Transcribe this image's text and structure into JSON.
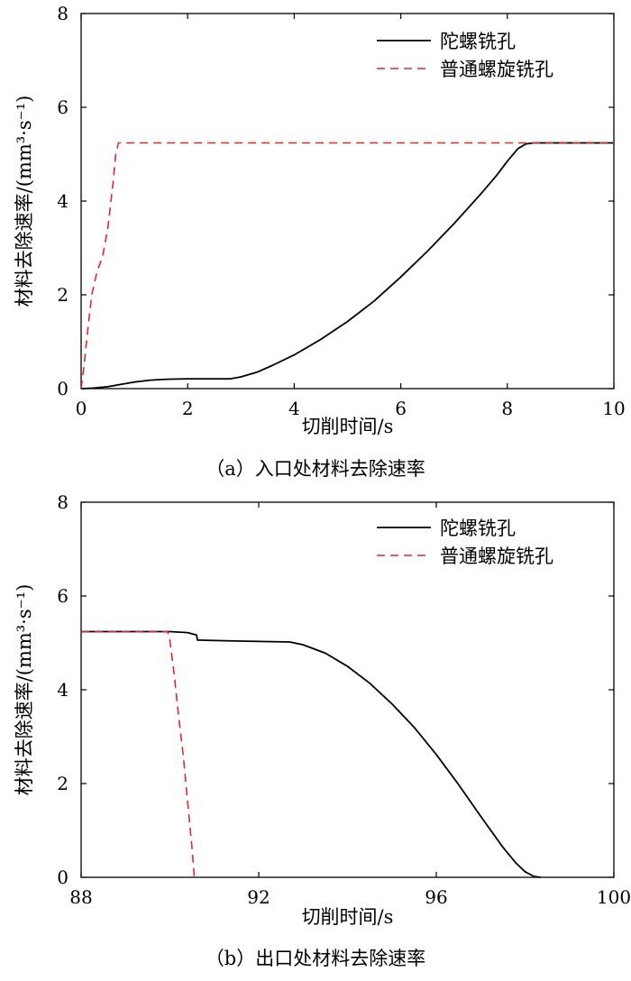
{
  "chart_data": [
    {
      "type": "line",
      "caption": "（a）入口处材料去除速率",
      "xlabel": "切削时间/s",
      "ylabel": "材料去除速率/(mm³·s⁻¹)",
      "xlim": [
        0,
        10
      ],
      "ylim": [
        0,
        8
      ],
      "xticks": [
        0,
        2,
        4,
        6,
        8,
        10
      ],
      "yticks": [
        0,
        2,
        4,
        6,
        8
      ],
      "xtick_labels": [
        "0",
        "2",
        "4",
        "6",
        "8",
        "10"
      ],
      "ytick_labels": [
        "0",
        "2",
        "4",
        "6",
        "8"
      ],
      "grid": false,
      "legend_position": "top-right",
      "series": [
        {
          "name": "陀螺铣孔",
          "color": "#000000",
          "style": "solid",
          "x": [
            0,
            0.2,
            0.5,
            0.8,
            1.0,
            1.3,
            1.6,
            2.0,
            2.4,
            2.8,
            3.0,
            3.3,
            3.6,
            4.0,
            4.5,
            5.0,
            5.5,
            6.0,
            6.5,
            7.0,
            7.5,
            7.8,
            8.0,
            8.2,
            8.35,
            8.5,
            9.0,
            9.5,
            10.0
          ],
          "y": [
            0,
            0.01,
            0.04,
            0.1,
            0.14,
            0.18,
            0.2,
            0.21,
            0.21,
            0.21,
            0.25,
            0.35,
            0.5,
            0.72,
            1.05,
            1.43,
            1.87,
            2.38,
            2.93,
            3.52,
            4.15,
            4.55,
            4.85,
            5.12,
            5.22,
            5.24,
            5.24,
            5.24,
            5.24
          ]
        },
        {
          "name": "普通螺旋铣孔",
          "color": "#e0282b",
          "style": "dashed",
          "x": [
            0,
            0.05,
            0.12,
            0.2,
            0.3,
            0.4,
            0.5,
            0.6,
            0.65,
            0.7,
            1.0,
            2.0,
            4.0,
            6.0,
            8.0,
            10.0
          ],
          "y": [
            0,
            0.45,
            1.2,
            2.0,
            2.5,
            2.8,
            3.4,
            4.4,
            5.0,
            5.24,
            5.24,
            5.24,
            5.24,
            5.24,
            5.24,
            5.24
          ]
        }
      ]
    },
    {
      "type": "line",
      "caption": "（b）出口处材料去除速率",
      "xlabel": "切削时间/s",
      "ylabel": "材料去除速率/(mm³·s⁻¹)",
      "xlim": [
        88,
        100
      ],
      "ylim": [
        0,
        8
      ],
      "xticks": [
        88,
        92,
        96,
        100
      ],
      "yticks": [
        0,
        2,
        4,
        6,
        8
      ],
      "xtick_labels": [
        "88",
        "92",
        "96",
        "100"
      ],
      "ytick_labels": [
        "0",
        "2",
        "4",
        "6",
        "8"
      ],
      "grid": false,
      "legend_position": "top-right",
      "series": [
        {
          "name": "陀螺铣孔",
          "color": "#000000",
          "style": "solid",
          "x": [
            88,
            89,
            90,
            90.4,
            90.6,
            90.62,
            91,
            92,
            92.7,
            93,
            93.5,
            94,
            94.5,
            95,
            95.5,
            96,
            96.5,
            97,
            97.5,
            97.8,
            98.0,
            98.2,
            98.35
          ],
          "y": [
            5.24,
            5.24,
            5.24,
            5.22,
            5.17,
            5.06,
            5.05,
            5.03,
            5.02,
            4.96,
            4.78,
            4.5,
            4.14,
            3.7,
            3.2,
            2.62,
            1.98,
            1.3,
            0.64,
            0.3,
            0.12,
            0.02,
            0
          ]
        },
        {
          "name": "普通螺旋铣孔",
          "color": "#e0282b",
          "style": "dashed",
          "x": [
            88,
            89,
            89.95,
            90.0,
            90.1,
            90.2,
            90.3,
            90.4,
            90.5,
            90.55
          ],
          "y": [
            5.24,
            5.24,
            5.24,
            5.05,
            4.3,
            3.4,
            2.6,
            1.6,
            0.6,
            0
          ]
        }
      ]
    }
  ]
}
